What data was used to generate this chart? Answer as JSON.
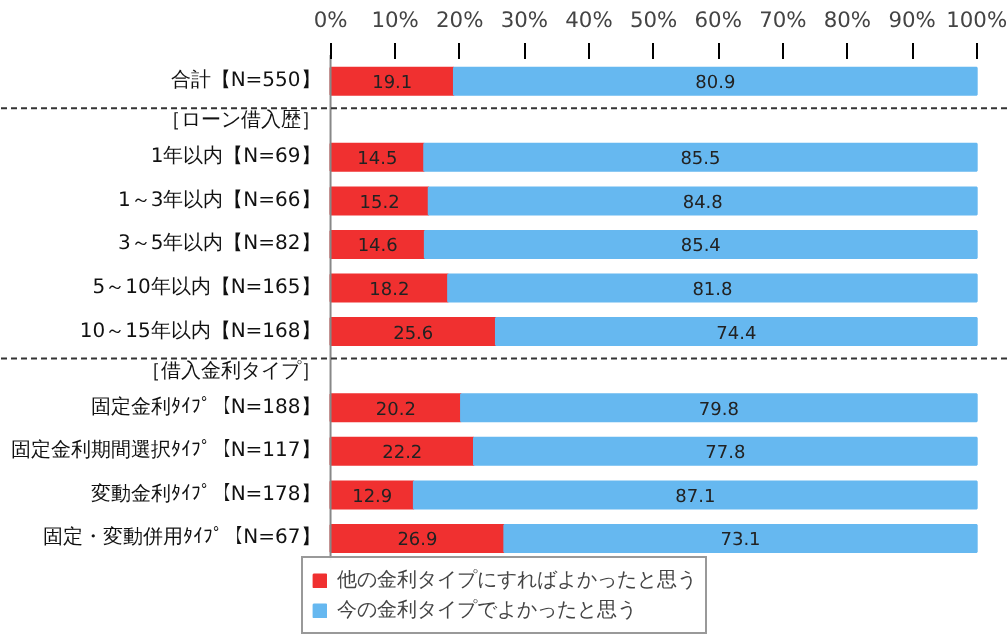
{
  "chart_data": {
    "type": "bar",
    "orientation": "horizontal",
    "stacked": true,
    "data_labels": true,
    "legend": "bottom",
    "grid": false,
    "categories": [
      "合計【N=550】",
      "［ローン借入歴］",
      "1年以内【N=69】",
      "1～3年以内【N=66】",
      "3～5年以内【N=82】",
      "5～10年以内【N=165】",
      "10～15年以内【N=168】",
      "［借入金利タイプ］",
      "固定金利ﾀｲﾌﾟ【N=188】",
      "固定金利期間選択ﾀｲﾌﾟ【N=117】",
      "変動金利ﾀｲﾌﾟ【N=178】",
      "固定・変動併用ﾀｲﾌﾟ【N=67】"
    ],
    "series": [
      {
        "name": "他の金利タイプにすればよかったと思う",
        "color": "#f03030",
        "values": [
          19.1,
          null,
          14.5,
          15.2,
          14.6,
          18.2,
          25.6,
          null,
          20.2,
          22.2,
          12.9,
          26.9
        ]
      },
      {
        "name": "今の金利タイプでよかったと思う",
        "color": "#66b8f0",
        "values": [
          80.9,
          null,
          85.5,
          84.8,
          85.4,
          81.8,
          74.4,
          null,
          79.8,
          77.8,
          87.1,
          73.1
        ]
      }
    ],
    "xlim": [
      0,
      100
    ],
    "xticks": [
      {
        "value": 0,
        "label": "0%"
      },
      {
        "value": 10,
        "label": "10%"
      },
      {
        "value": 20,
        "label": "20%"
      },
      {
        "value": 30,
        "label": "30%"
      },
      {
        "value": 40,
        "label": "40%"
      },
      {
        "value": 50,
        "label": "50%"
      },
      {
        "value": 60,
        "label": "60%"
      },
      {
        "value": 70,
        "label": "70%"
      },
      {
        "value": 80,
        "label": "80%"
      },
      {
        "value": 90,
        "label": "90%"
      },
      {
        "value": 100,
        "label": "100%"
      }
    ],
    "ref_lines": [
      {
        "axis": "y",
        "value": "［ローン借入歴］",
        "line_style": "dashed",
        "color": "#333333"
      },
      {
        "axis": "y",
        "value": "［借入金利タイプ］",
        "line_style": "dashed",
        "color": "#333333"
      }
    ]
  }
}
